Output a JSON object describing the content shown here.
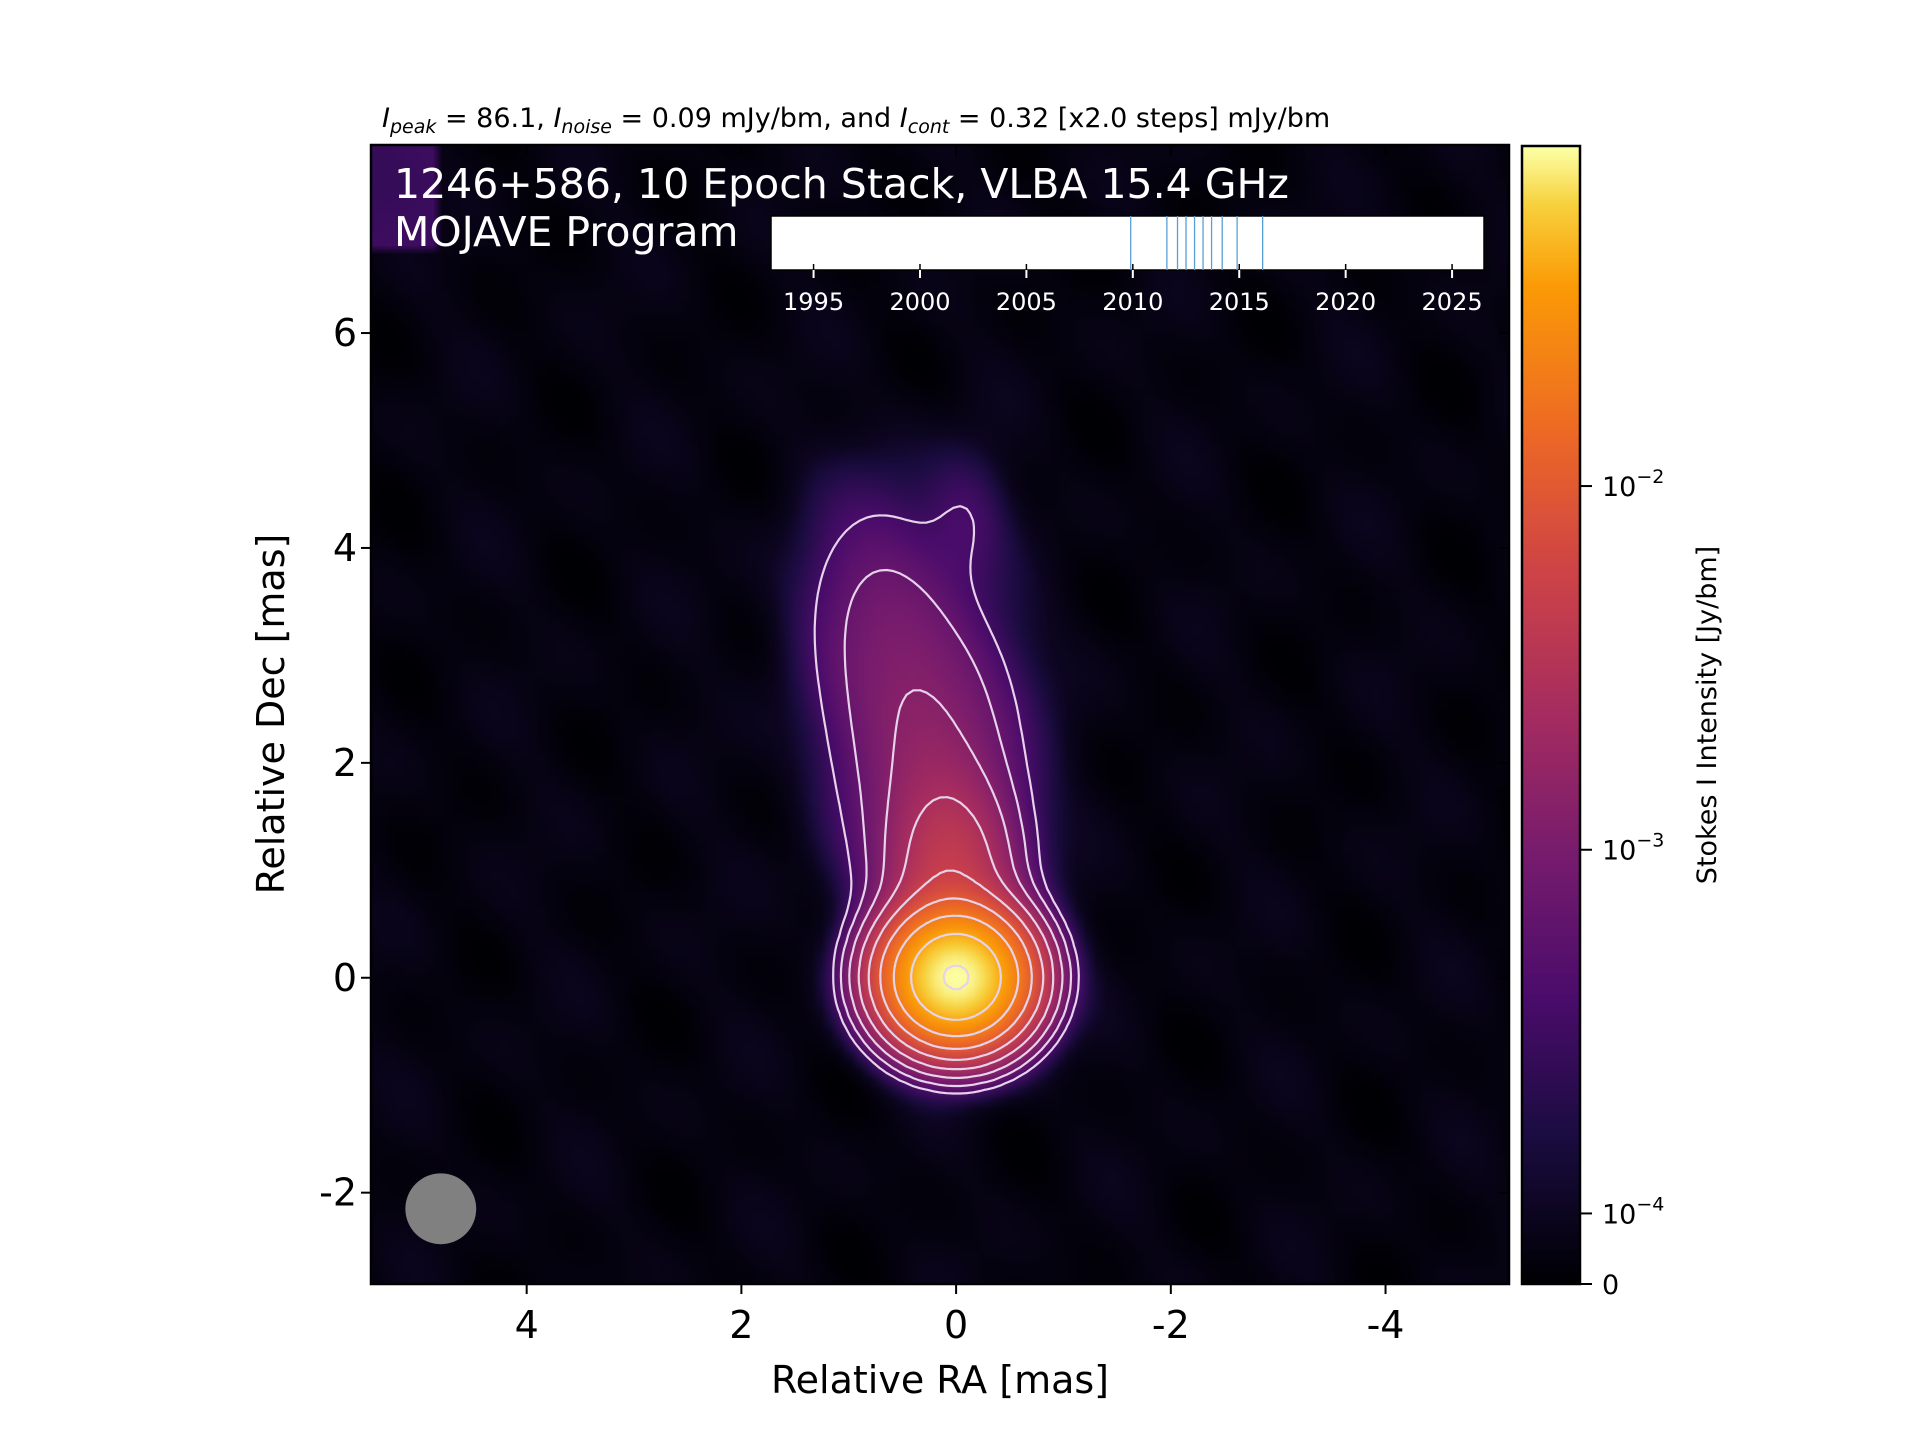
{
  "chart_data": {
    "type": "heatmap",
    "header": {
      "parts": [
        {
          "text": "I",
          "italic": true,
          "sub": false
        },
        {
          "text": "peak",
          "italic": true,
          "sub": true
        },
        {
          "text": " = 86.1, ",
          "italic": false,
          "sub": false
        },
        {
          "text": "I",
          "italic": true,
          "sub": false
        },
        {
          "text": "noise",
          "italic": true,
          "sub": true
        },
        {
          "text": " = 0.09 mJy/bm, and ",
          "italic": false,
          "sub": false
        },
        {
          "text": "I",
          "italic": true,
          "sub": false
        },
        {
          "text": "cont",
          "italic": true,
          "sub": true
        },
        {
          "text": " = 0.32 [x2.0 steps] mJy/bm",
          "italic": false,
          "sub": false
        }
      ]
    },
    "title_line1": "1246+586, 10 Epoch Stack, VLBA 15.4 GHz",
    "title_line2": "MOJAVE Program",
    "xlabel": "Relative RA [mas]",
    "ylabel": "Relative Dec [mas]",
    "xlim": [
      5.45,
      -5.15
    ],
    "ylim": [
      -2.85,
      7.75
    ],
    "xticks": [
      {
        "value": 4,
        "label": "4"
      },
      {
        "value": 2,
        "label": "2"
      },
      {
        "value": 0,
        "label": "0"
      },
      {
        "value": -2,
        "label": "-2"
      },
      {
        "value": -4,
        "label": "-4"
      }
    ],
    "yticks": [
      {
        "value": -2,
        "label": "-2"
      },
      {
        "value": 0,
        "label": "0"
      },
      {
        "value": 2,
        "label": "2"
      },
      {
        "value": 4,
        "label": "4"
      },
      {
        "value": 6,
        "label": "6"
      }
    ],
    "image": {
      "colormap": "inferno",
      "background": "#000004",
      "source_components": [
        {
          "name": "core",
          "x": 0.0,
          "y": 0.0,
          "sigma_x": 0.34,
          "sigma_y": 0.32,
          "peak": 0.0861
        },
        {
          "name": "inner-jet",
          "x": 0.05,
          "y": 0.9,
          "sigma_x": 0.35,
          "sigma_y": 0.55,
          "peak": 0.004
        },
        {
          "name": "jet",
          "x": 0.25,
          "y": 2.1,
          "sigma_x": 0.5,
          "sigma_y": 0.85,
          "peak": 0.0013
        },
        {
          "name": "outer-jet",
          "x": 0.75,
          "y": 3.4,
          "sigma_x": 0.45,
          "sigma_y": 0.75,
          "peak": 0.0006
        },
        {
          "name": "tip",
          "x": -0.1,
          "y": 4.3,
          "sigma_x": 0.25,
          "sigma_y": 0.4,
          "peak": 0.00025
        }
      ],
      "contour_levels_jy": [
        0.00032,
        0.00064,
        0.00128,
        0.00256,
        0.00512,
        0.01024,
        0.02048,
        0.04096,
        0.08192
      ],
      "contour_color": "#e6d2ea"
    },
    "beam": {
      "x": 4.8,
      "y": -2.15,
      "major": 0.66,
      "minor": 0.66,
      "angle": 0,
      "color": "#808080"
    },
    "colorbar": {
      "label": "Stokes I Intensity [Jy/bm]",
      "scale": "symlog",
      "min": 0,
      "max": 0.0861,
      "ticks": [
        {
          "value": 0,
          "label": "0",
          "exp": ""
        },
        {
          "value": 0.0001,
          "label": "10",
          "exp": "−4"
        },
        {
          "value": 0.001,
          "label": "10",
          "exp": "−3"
        },
        {
          "value": 0.01,
          "label": "10",
          "exp": "−2"
        }
      ]
    },
    "epoch_timeline": {
      "xlim": [
        1993,
        2026.5
      ],
      "ticks": [
        1995,
        2000,
        2005,
        2010,
        2015,
        2020,
        2025
      ],
      "epochs": [
        2009.9,
        2011.6,
        2012.1,
        2012.5,
        2012.9,
        2013.3,
        2013.7,
        2014.2,
        2014.9,
        2016.1
      ],
      "line_color": "#5a9fd4"
    }
  }
}
